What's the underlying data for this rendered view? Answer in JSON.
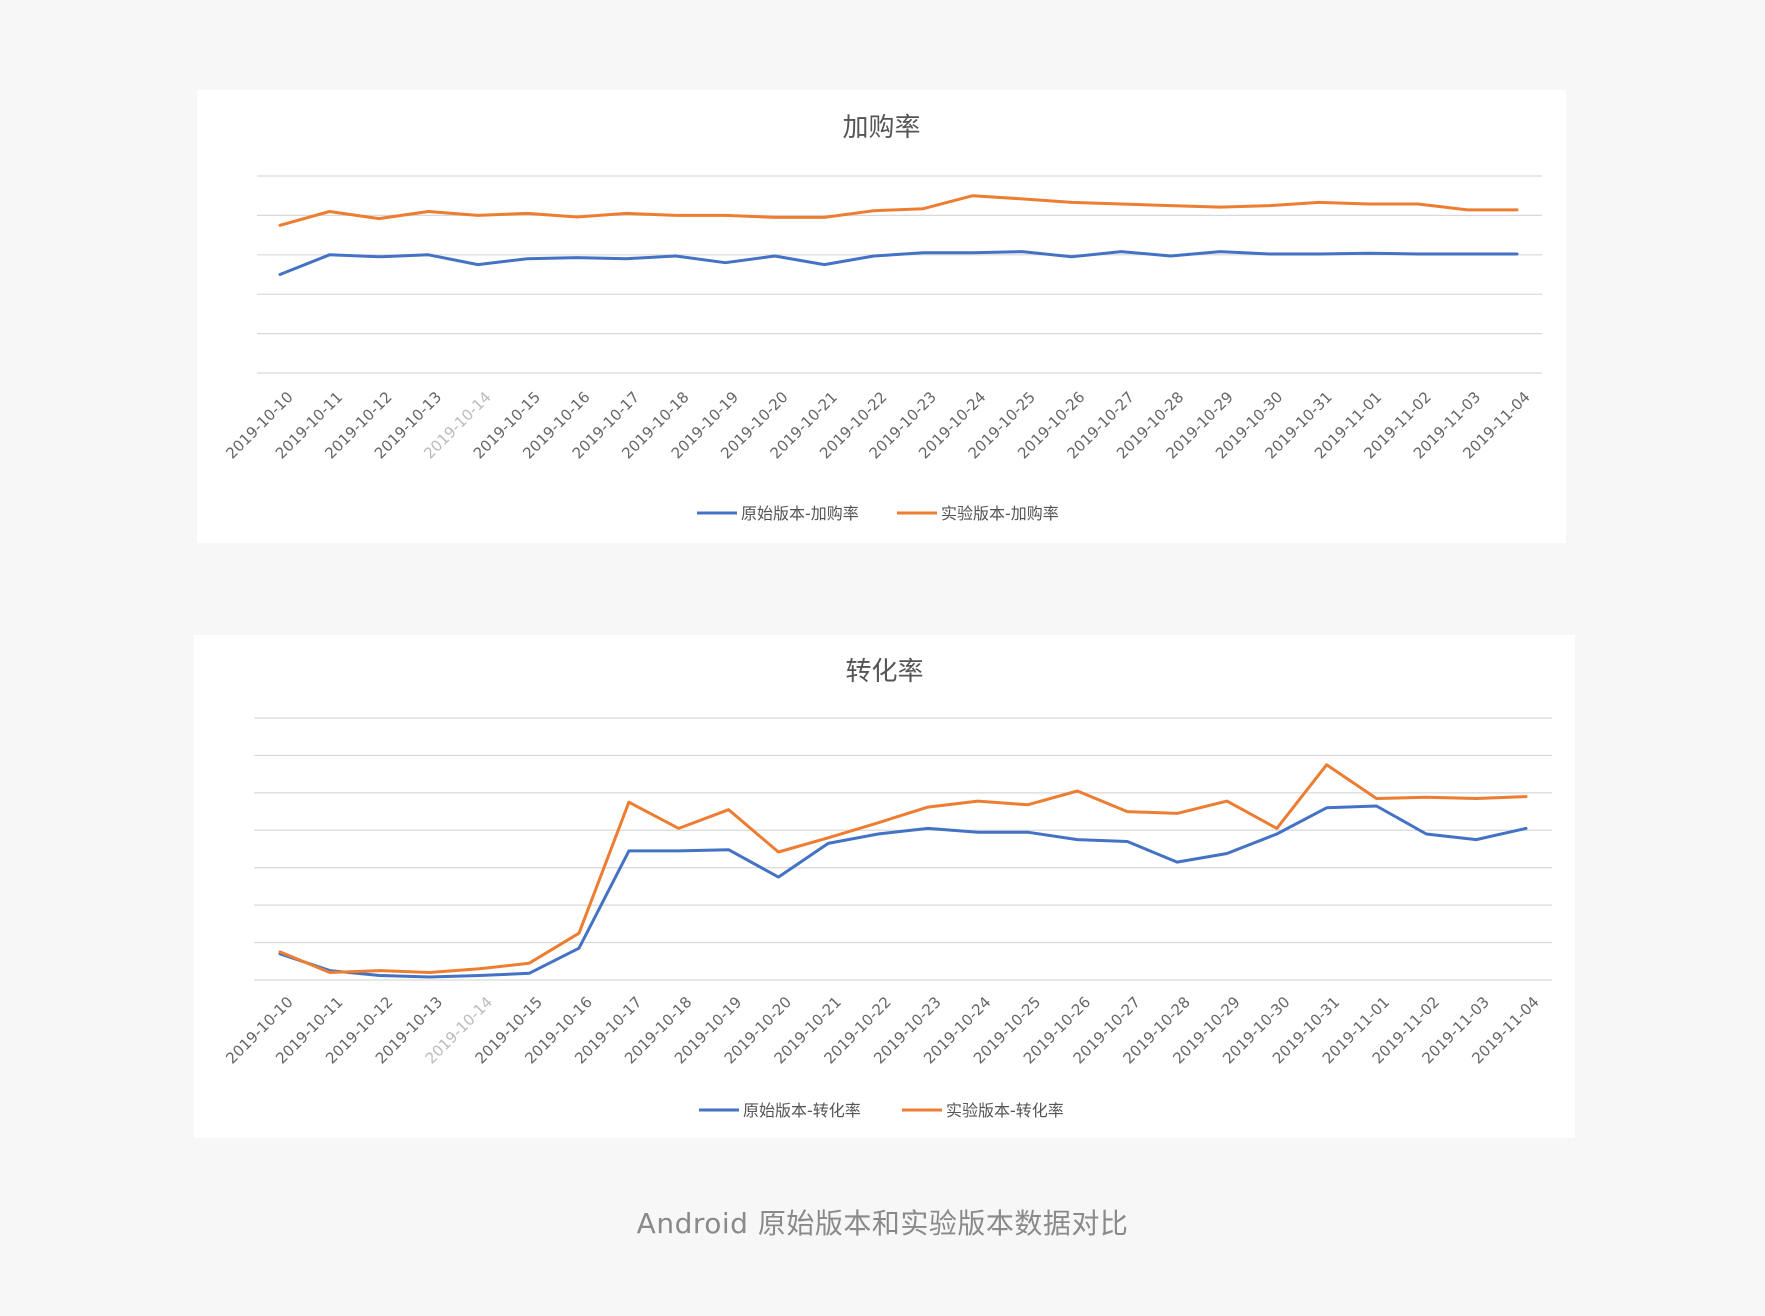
{
  "caption": "Android 原始版本和实验版本数据对比",
  "chart_data": [
    {
      "type": "line",
      "title": "加购率",
      "categories": [
        "2019-10-10",
        "2019-10-11",
        "2019-10-12",
        "2019-10-13",
        "2019-10-14",
        "2019-10-15",
        "2019-10-16",
        "2019-10-17",
        "2019-10-18",
        "2019-10-19",
        "2019-10-20",
        "2019-10-21",
        "2019-10-22",
        "2019-10-23",
        "2019-10-24",
        "2019-10-25",
        "2019-10-26",
        "2019-10-27",
        "2019-10-28",
        "2019-10-29",
        "2019-10-30",
        "2019-10-31",
        "2019-11-01",
        "2019-11-02",
        "2019-11-03",
        "2019-11-04"
      ],
      "faded_categories": [
        "2019-10-14"
      ],
      "gridlines": 6,
      "ylim": [
        0,
        5
      ],
      "legend": "bottom",
      "series": [
        {
          "name": "原始版本-加购率",
          "color": "#4472c4",
          "values": [
            2.5,
            3.0,
            2.95,
            3.0,
            2.75,
            2.9,
            2.93,
            2.9,
            2.97,
            2.8,
            2.97,
            2.75,
            2.97,
            3.05,
            3.05,
            3.08,
            2.95,
            3.08,
            2.97,
            3.08,
            3.02,
            3.02,
            3.04,
            3.02,
            3.02,
            3.02
          ]
        },
        {
          "name": "实验版本-加购率",
          "color": "#ed7d31",
          "values": [
            3.75,
            4.1,
            3.92,
            4.1,
            4.0,
            4.05,
            3.96,
            4.05,
            4.0,
            4.0,
            3.95,
            3.95,
            4.12,
            4.17,
            4.5,
            4.42,
            4.33,
            4.29,
            4.25,
            4.21,
            4.25,
            4.33,
            4.29,
            4.29,
            4.14,
            4.14
          ]
        }
      ]
    },
    {
      "type": "line",
      "title": "转化率",
      "categories": [
        "2019-10-10",
        "2019-10-11",
        "2019-10-12",
        "2019-10-13",
        "2019-10-14",
        "2019-10-15",
        "2019-10-16",
        "2019-10-17",
        "2019-10-18",
        "2019-10-19",
        "2019-10-20",
        "2019-10-21",
        "2019-10-22",
        "2019-10-23",
        "2019-10-24",
        "2019-10-25",
        "2019-10-26",
        "2019-10-27",
        "2019-10-28",
        "2019-10-29",
        "2019-10-30",
        "2019-10-31",
        "2019-11-01",
        "2019-11-02",
        "2019-11-03",
        "2019-11-04"
      ],
      "faded_categories": [
        "2019-10-14"
      ],
      "gridlines": 8,
      "ylim": [
        0,
        7
      ],
      "legend": "bottom",
      "series": [
        {
          "name": "原始版本-转化率",
          "color": "#4472c4",
          "values": [
            0.7,
            0.25,
            0.12,
            0.08,
            0.12,
            0.18,
            0.85,
            3.45,
            3.45,
            3.48,
            2.75,
            3.65,
            3.9,
            4.05,
            3.95,
            3.95,
            3.75,
            3.7,
            3.15,
            3.38,
            3.9,
            4.6,
            4.65,
            3.9,
            3.75,
            4.05
          ]
        },
        {
          "name": "实验版本-转化率",
          "color": "#ed7d31",
          "values": [
            0.75,
            0.2,
            0.25,
            0.2,
            0.3,
            0.45,
            1.25,
            4.75,
            4.05,
            4.55,
            3.42,
            3.8,
            4.2,
            4.62,
            4.78,
            4.68,
            5.05,
            4.5,
            4.45,
            4.78,
            4.05,
            5.75,
            4.85,
            4.88,
            4.85,
            4.9
          ]
        }
      ]
    }
  ]
}
